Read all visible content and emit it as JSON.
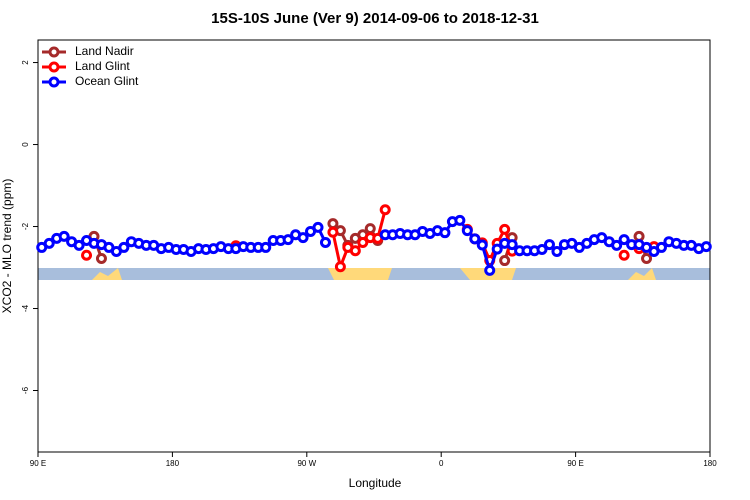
{
  "chart_data": {
    "type": "line",
    "title": "15S-10S June (Ver 9)   2014-09-06 to 2018-12-31",
    "x_label": "Longitude",
    "y_label": "XCO2 - MLO trend (ppm)",
    "x": [
      92.5,
      97.5,
      102.5,
      107.5,
      112.5,
      117.5,
      122.5,
      127.5,
      132.5,
      137.5,
      142.5,
      147.5,
      152.5,
      157.5,
      162.5,
      167.5,
      172.5,
      177.5,
      182.5,
      187.5,
      192.5,
      197.5,
      202.5,
      207.5,
      212.5,
      217.5,
      222.5,
      227.5,
      232.5,
      237.5,
      242.5,
      247.5,
      252.5,
      257.5,
      262.5,
      267.5,
      272.5,
      277.5,
      282.5,
      287.5,
      292.5,
      297.5,
      302.5,
      307.5,
      312.5,
      317.5,
      322.5,
      327.5,
      332.5,
      337.5,
      342.5,
      347.5,
      352.5,
      357.5,
      362.5,
      367.5,
      372.5,
      377.5,
      382.5,
      387.5,
      392.5,
      397.5,
      402.5,
      407.5,
      412.5,
      417.5,
      422.5,
      427.5,
      432.5,
      437.5,
      442.5,
      447.5,
      452.5,
      457.5,
      462.5,
      467.5,
      472.5,
      477.5,
      482.5,
      487.5,
      492.5,
      497.5,
      502.5,
      507.5,
      512.5,
      517.5,
      522.5,
      527.5,
      532.5,
      537.5
    ],
    "xlim": [
      90,
      540
    ],
    "xticks": [
      {
        "value": 90,
        "label": "90 E"
      },
      {
        "value": 180,
        "label": "180"
      },
      {
        "value": 270,
        "label": "90 W"
      },
      {
        "value": 360,
        "label": "0"
      },
      {
        "value": 450,
        "label": "90 E"
      },
      {
        "value": 540,
        "label": "180"
      }
    ],
    "ylim": [
      -7.5,
      2.55
    ],
    "yticks": [
      2,
      0,
      -2,
      -4,
      -6
    ],
    "legend": "top-left",
    "series": [
      {
        "name": "Land Nadir",
        "color": "#a52a2a",
        "values": [
          null,
          null,
          null,
          null,
          null,
          null,
          null,
          -2.24,
          -2.78,
          null,
          null,
          null,
          null,
          null,
          null,
          null,
          null,
          null,
          null,
          null,
          null,
          null,
          null,
          null,
          null,
          null,
          null,
          null,
          null,
          null,
          null,
          null,
          null,
          null,
          null,
          null,
          null,
          null,
          null,
          -1.93,
          -2.1,
          -2.46,
          -2.29,
          -2.2,
          -2.05,
          -2.34,
          null,
          null,
          null,
          null,
          null,
          null,
          null,
          null,
          null,
          null,
          null,
          null,
          null,
          null,
          null,
          null,
          -2.83,
          -2.27,
          null,
          null,
          null,
          null,
          null,
          null,
          null,
          null,
          null,
          null,
          null,
          null,
          null,
          null,
          null,
          null,
          -2.24,
          -2.78,
          null,
          null,
          null,
          null,
          null,
          null,
          null,
          null
        ]
      },
      {
        "name": "Land Glint",
        "color": "#ff0000",
        "values": [
          null,
          null,
          null,
          null,
          null,
          null,
          -2.7,
          null,
          null,
          null,
          null,
          null,
          null,
          null,
          null,
          null,
          null,
          null,
          null,
          null,
          null,
          null,
          null,
          null,
          null,
          null,
          -2.47,
          null,
          null,
          null,
          null,
          null,
          null,
          null,
          null,
          null,
          null,
          null,
          null,
          -2.14,
          -2.98,
          -2.51,
          -2.59,
          -2.39,
          -2.27,
          -2.29,
          -1.59,
          null,
          null,
          null,
          null,
          null,
          null,
          null,
          null,
          null,
          null,
          -2.07,
          -2.3,
          -2.4,
          -2.83,
          -2.41,
          -2.07,
          -2.6,
          null,
          null,
          null,
          null,
          null,
          null,
          null,
          null,
          null,
          null,
          null,
          null,
          null,
          null,
          -2.7,
          null,
          -2.54,
          null,
          -2.49,
          null,
          null,
          null,
          null,
          null,
          null,
          null
        ]
      },
      {
        "name": "Ocean Glint",
        "color": "#0000ff",
        "values": [
          -2.51,
          -2.41,
          -2.29,
          -2.24,
          -2.37,
          -2.46,
          -2.34,
          -2.41,
          -2.44,
          -2.51,
          -2.61,
          -2.51,
          -2.37,
          -2.41,
          -2.46,
          -2.46,
          -2.54,
          -2.51,
          -2.56,
          -2.56,
          -2.61,
          -2.54,
          -2.56,
          -2.54,
          -2.49,
          -2.54,
          -2.54,
          -2.49,
          -2.51,
          -2.51,
          -2.51,
          -2.34,
          -2.34,
          -2.32,
          -2.2,
          -2.27,
          -2.12,
          -2.02,
          -2.39,
          null,
          null,
          null,
          null,
          null,
          null,
          null,
          -2.2,
          -2.2,
          -2.17,
          -2.2,
          -2.2,
          -2.12,
          -2.17,
          -2.1,
          -2.15,
          -1.88,
          -1.85,
          -2.1,
          -2.3,
          -2.45,
          -3.07,
          -2.55,
          -2.41,
          -2.44,
          -2.59,
          -2.59,
          -2.59,
          -2.56,
          -2.44,
          -2.61,
          -2.44,
          -2.41,
          -2.51,
          -2.41,
          -2.32,
          -2.27,
          -2.37,
          -2.46,
          -2.32,
          -2.44,
          -2.44,
          -2.51,
          -2.61,
          -2.51,
          -2.37,
          -2.41,
          -2.46,
          -2.46,
          -2.54,
          -2.49
        ]
      }
    ]
  }
}
